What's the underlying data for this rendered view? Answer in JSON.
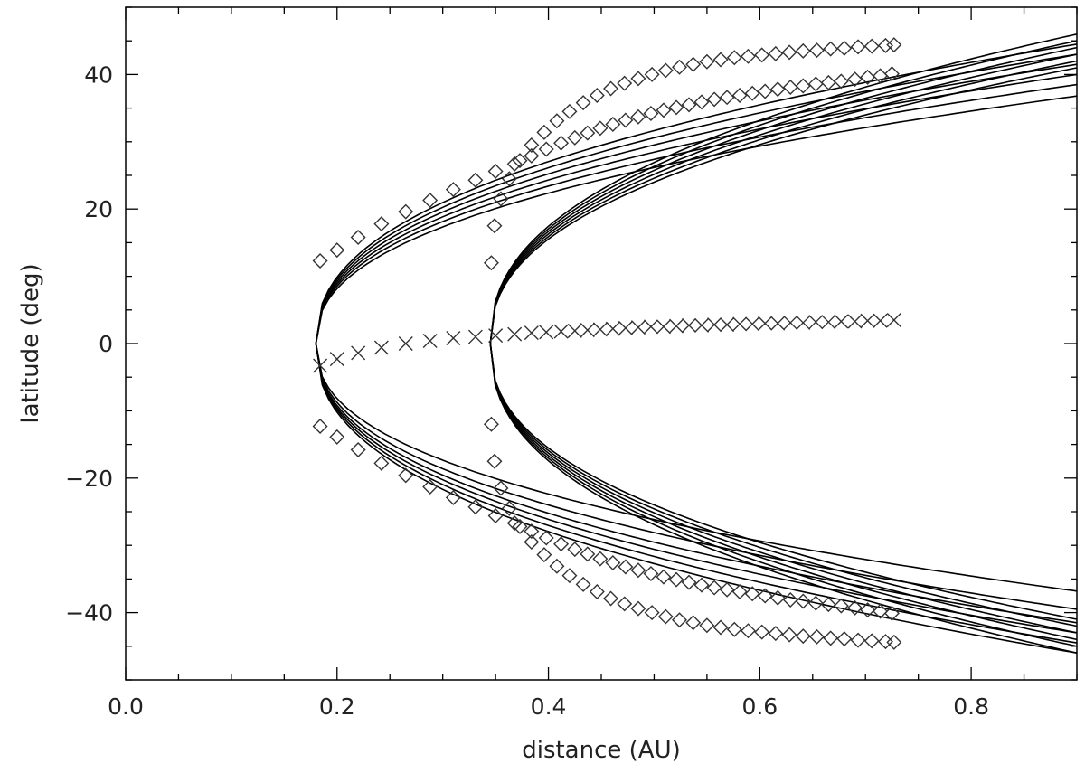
{
  "chart_data": {
    "type": "scatter",
    "xlabel": "distance (AU)",
    "ylabel": "latitude (deg)",
    "xlim": [
      0.0,
      0.9
    ],
    "ylim": [
      -50,
      50
    ],
    "x_ticks": [
      0.0,
      0.2,
      0.4,
      0.6,
      0.8
    ],
    "x_tick_labels": [
      "0.0",
      "0.2",
      "0.4",
      "0.6",
      "0.8"
    ],
    "y_ticks": [
      -40,
      -20,
      0,
      20,
      40
    ],
    "y_tick_labels": [
      "−40",
      "−20",
      "0",
      "20",
      "40"
    ],
    "x_minor_step": 0.05,
    "y_minor_step": 5,
    "grid": false,
    "colors": {
      "axis": "#000000",
      "curves": "#000000",
      "markers": "#333333"
    },
    "series": [
      {
        "marker": "diamond",
        "points": [
          [
            0.184,
            12.3
          ],
          [
            0.2,
            13.9
          ],
          [
            0.22,
            15.8
          ],
          [
            0.242,
            17.8
          ],
          [
            0.265,
            19.6
          ],
          [
            0.288,
            21.3
          ],
          [
            0.31,
            22.9
          ],
          [
            0.331,
            24.3
          ],
          [
            0.35,
            25.6
          ],
          [
            0.368,
            26.7
          ],
          [
            0.384,
            27.9
          ],
          [
            0.398,
            28.9
          ],
          [
            0.412,
            29.8
          ],
          [
            0.425,
            30.6
          ],
          [
            0.437,
            31.3
          ],
          [
            0.449,
            32.0
          ],
          [
            0.461,
            32.6
          ],
          [
            0.473,
            33.2
          ],
          [
            0.485,
            33.7
          ],
          [
            0.497,
            34.2
          ],
          [
            0.509,
            34.7
          ],
          [
            0.521,
            35.1
          ],
          [
            0.533,
            35.5
          ],
          [
            0.545,
            35.9
          ],
          [
            0.557,
            36.3
          ],
          [
            0.569,
            36.6
          ],
          [
            0.581,
            36.9
          ],
          [
            0.593,
            37.2
          ],
          [
            0.605,
            37.5
          ],
          [
            0.617,
            37.8
          ],
          [
            0.629,
            38.1
          ],
          [
            0.641,
            38.3
          ],
          [
            0.653,
            38.6
          ],
          [
            0.665,
            38.8
          ],
          [
            0.677,
            39.0
          ],
          [
            0.69,
            39.3
          ],
          [
            0.702,
            39.6
          ],
          [
            0.714,
            39.8
          ],
          [
            0.725,
            40.1
          ]
        ]
      },
      {
        "marker": "diamond",
        "points": [
          [
            0.184,
            -12.3
          ],
          [
            0.2,
            -13.9
          ],
          [
            0.22,
            -15.8
          ],
          [
            0.242,
            -17.8
          ],
          [
            0.265,
            -19.6
          ],
          [
            0.288,
            -21.3
          ],
          [
            0.31,
            -22.9
          ],
          [
            0.331,
            -24.3
          ],
          [
            0.35,
            -25.6
          ],
          [
            0.368,
            -26.7
          ],
          [
            0.384,
            -27.9
          ],
          [
            0.398,
            -28.9
          ],
          [
            0.412,
            -29.8
          ],
          [
            0.425,
            -30.6
          ],
          [
            0.437,
            -31.3
          ],
          [
            0.449,
            -32.0
          ],
          [
            0.461,
            -32.6
          ],
          [
            0.473,
            -33.2
          ],
          [
            0.485,
            -33.7
          ],
          [
            0.497,
            -34.2
          ],
          [
            0.509,
            -34.7
          ],
          [
            0.521,
            -35.1
          ],
          [
            0.533,
            -35.5
          ],
          [
            0.545,
            -35.9
          ],
          [
            0.557,
            -36.3
          ],
          [
            0.569,
            -36.6
          ],
          [
            0.581,
            -36.9
          ],
          [
            0.593,
            -37.2
          ],
          [
            0.605,
            -37.5
          ],
          [
            0.617,
            -37.8
          ],
          [
            0.629,
            -38.1
          ],
          [
            0.641,
            -38.3
          ],
          [
            0.653,
            -38.6
          ],
          [
            0.665,
            -38.8
          ],
          [
            0.677,
            -39.0
          ],
          [
            0.69,
            -39.3
          ],
          [
            0.702,
            -39.6
          ],
          [
            0.714,
            -39.8
          ],
          [
            0.725,
            -40.1
          ]
        ]
      },
      {
        "marker": "diamond",
        "points": [
          [
            0.346,
            12.0
          ],
          [
            0.349,
            17.5
          ],
          [
            0.355,
            21.5
          ],
          [
            0.363,
            24.5
          ],
          [
            0.373,
            27.2
          ],
          [
            0.384,
            29.5
          ],
          [
            0.396,
            31.4
          ],
          [
            0.408,
            33.1
          ],
          [
            0.42,
            34.5
          ],
          [
            0.433,
            35.8
          ],
          [
            0.446,
            36.9
          ],
          [
            0.459,
            37.9
          ],
          [
            0.472,
            38.7
          ],
          [
            0.485,
            39.4
          ],
          [
            0.498,
            40.0
          ],
          [
            0.511,
            40.6
          ],
          [
            0.524,
            41.1
          ],
          [
            0.537,
            41.5
          ],
          [
            0.55,
            41.9
          ],
          [
            0.563,
            42.2
          ],
          [
            0.576,
            42.5
          ],
          [
            0.589,
            42.7
          ],
          [
            0.602,
            42.9
          ],
          [
            0.615,
            43.1
          ],
          [
            0.628,
            43.3
          ],
          [
            0.641,
            43.5
          ],
          [
            0.654,
            43.6
          ],
          [
            0.667,
            43.8
          ],
          [
            0.68,
            43.9
          ],
          [
            0.693,
            44.1
          ],
          [
            0.706,
            44.2
          ],
          [
            0.719,
            44.3
          ],
          [
            0.727,
            44.4
          ]
        ]
      },
      {
        "marker": "diamond",
        "points": [
          [
            0.346,
            -12.0
          ],
          [
            0.349,
            -17.5
          ],
          [
            0.355,
            -21.5
          ],
          [
            0.363,
            -24.5
          ],
          [
            0.373,
            -27.2
          ],
          [
            0.384,
            -29.5
          ],
          [
            0.396,
            -31.4
          ],
          [
            0.408,
            -33.1
          ],
          [
            0.42,
            -34.5
          ],
          [
            0.433,
            -35.8
          ],
          [
            0.446,
            -36.9
          ],
          [
            0.459,
            -37.9
          ],
          [
            0.472,
            -38.7
          ],
          [
            0.485,
            -39.4
          ],
          [
            0.498,
            -40.0
          ],
          [
            0.511,
            -40.6
          ],
          [
            0.524,
            -41.1
          ],
          [
            0.537,
            -41.5
          ],
          [
            0.55,
            -41.9
          ],
          [
            0.563,
            -42.2
          ],
          [
            0.576,
            -42.5
          ],
          [
            0.589,
            -42.7
          ],
          [
            0.602,
            -42.9
          ],
          [
            0.615,
            -43.1
          ],
          [
            0.628,
            -43.3
          ],
          [
            0.641,
            -43.5
          ],
          [
            0.654,
            -43.6
          ],
          [
            0.667,
            -43.8
          ],
          [
            0.68,
            -43.9
          ],
          [
            0.693,
            -44.1
          ],
          [
            0.706,
            -44.2
          ],
          [
            0.719,
            -44.3
          ],
          [
            0.727,
            -44.4
          ]
        ]
      },
      {
        "marker": "cross",
        "points": [
          [
            0.184,
            -3.3
          ],
          [
            0.2,
            -2.3
          ],
          [
            0.22,
            -1.4
          ],
          [
            0.242,
            -0.6
          ],
          [
            0.265,
            0.0
          ],
          [
            0.288,
            0.4
          ],
          [
            0.31,
            0.8
          ],
          [
            0.331,
            1.0
          ],
          [
            0.35,
            1.2
          ],
          [
            0.368,
            1.4
          ],
          [
            0.384,
            1.6
          ],
          [
            0.398,
            1.7
          ],
          [
            0.412,
            1.8
          ],
          [
            0.425,
            1.9
          ],
          [
            0.437,
            2.0
          ],
          [
            0.449,
            2.1
          ],
          [
            0.461,
            2.2
          ],
          [
            0.473,
            2.3
          ],
          [
            0.485,
            2.4
          ],
          [
            0.497,
            2.5
          ],
          [
            0.509,
            2.5
          ],
          [
            0.521,
            2.6
          ],
          [
            0.533,
            2.7
          ],
          [
            0.545,
            2.7
          ],
          [
            0.557,
            2.8
          ],
          [
            0.569,
            2.8
          ],
          [
            0.581,
            2.9
          ],
          [
            0.593,
            2.9
          ],
          [
            0.605,
            3.0
          ],
          [
            0.617,
            3.0
          ],
          [
            0.629,
            3.1
          ],
          [
            0.641,
            3.1
          ],
          [
            0.653,
            3.2
          ],
          [
            0.665,
            3.2
          ],
          [
            0.677,
            3.3
          ],
          [
            0.69,
            3.3
          ],
          [
            0.702,
            3.4
          ],
          [
            0.714,
            3.4
          ],
          [
            0.727,
            3.5
          ]
        ]
      }
    ],
    "curve_families": [
      {
        "description": "outer fan",
        "x_start": 0.18,
        "x_end": 0.9,
        "upper_end_lat": [
          44.5,
          43.0,
          41.5,
          40.0,
          38.5,
          36.8
        ],
        "lower_end_lat": [
          -46.0,
          -44.5,
          -43.0,
          -41.5,
          -39.5,
          -36.8
        ]
      },
      {
        "description": "inner fan",
        "x_start": 0.345,
        "x_end": 0.9,
        "upper_end_lat": [
          46.0,
          45.0,
          44.0,
          43.0,
          42.0,
          41.0
        ],
        "lower_end_lat": [
          -46.0,
          -45.0,
          -44.0,
          -43.0,
          -42.0,
          -41.0
        ]
      }
    ]
  }
}
